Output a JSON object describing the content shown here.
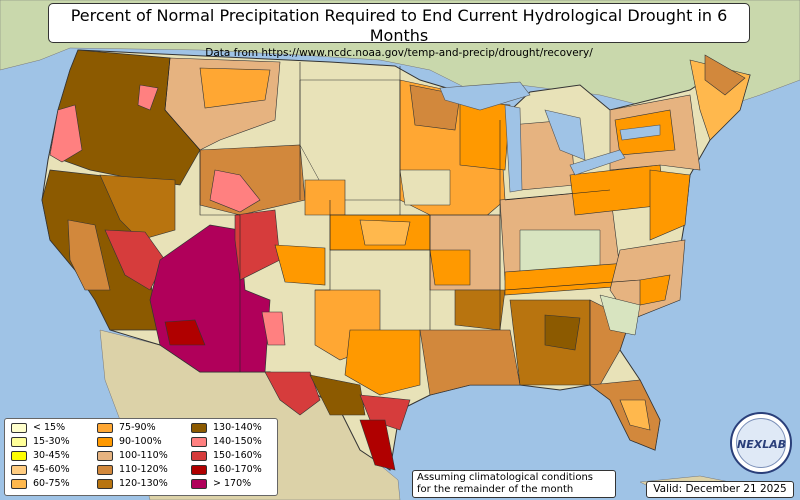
{
  "title": "Percent of Normal Precipitation Required to End Current Hydrological Drought in 6 Months",
  "subtitle": "Data from https://www.ncdc.noaa.gov/temp-and-precip/drought/recovery/",
  "note_line1": "Assuming climatological conditions",
  "note_line2": "for the remainder of the month",
  "valid": "Valid: December 21 2025",
  "logo_text": "NEXLAB",
  "legend": [
    {
      "label": "< 15%",
      "color": "#ffffcc"
    },
    {
      "label": "15-30%",
      "color": "#ffff99"
    },
    {
      "label": "30-45%",
      "color": "#ffff00"
    },
    {
      "label": "45-60%",
      "color": "#ffcc80"
    },
    {
      "label": "60-75%",
      "color": "#ffb84d"
    },
    {
      "label": "75-90%",
      "color": "#ffa733"
    },
    {
      "label": "90-100%",
      "color": "#ff9900"
    },
    {
      "label": "100-110%",
      "color": "#e6b380"
    },
    {
      "label": "110-120%",
      "color": "#d2883c"
    },
    {
      "label": "120-130%",
      "color": "#b8740f"
    },
    {
      "label": "130-140%",
      "color": "#8c5a00"
    },
    {
      "label": "140-150%",
      "color": "#ff8080"
    },
    {
      "label": "150-160%",
      "color": "#d63c3c"
    },
    {
      "label": "160-170%",
      "color": "#b00000"
    },
    {
      "label": "> 170%",
      "color": "#b0005a"
    }
  ],
  "colors": {
    "ocean": "#9fc3e6",
    "land_us": "#e8e2b8",
    "land_north": "#cfdcb4",
    "land_south": "#dcd2a8",
    "no_drought_green": "#d8e4c0"
  }
}
